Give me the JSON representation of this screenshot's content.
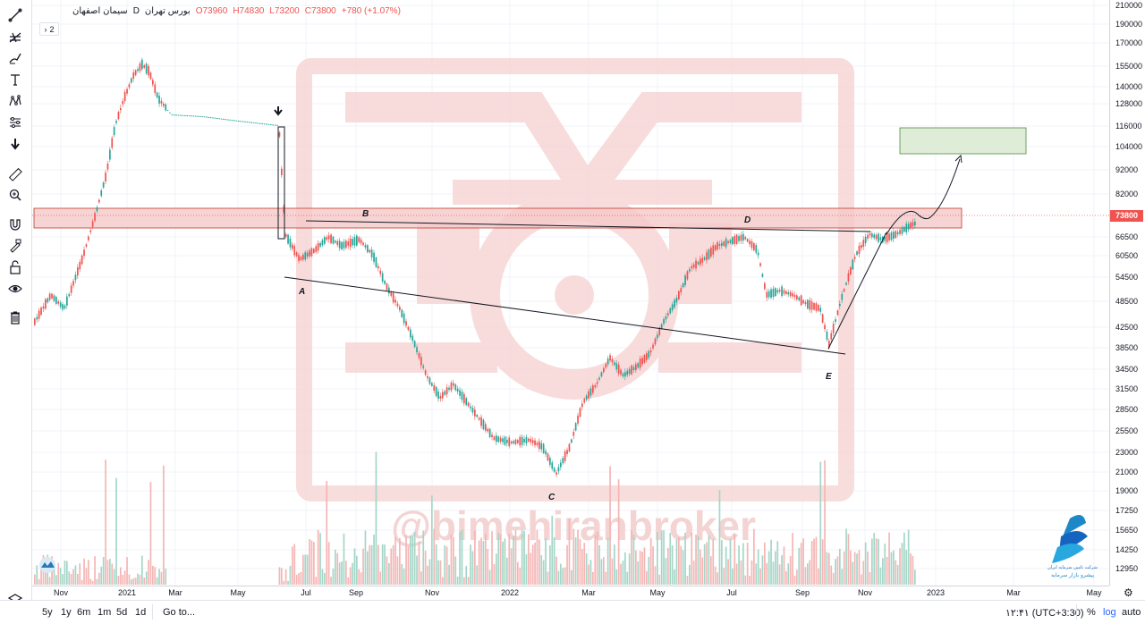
{
  "symbol": {
    "name": "سیمان اصفهان",
    "exchange": "بورس تهران",
    "interval": "D",
    "open_label": "O73960",
    "high_label": "H74830",
    "low_label": "L73200",
    "close_label": "C73800",
    "change_label": "+780 (+1.07%)",
    "collapse_label": "2"
  },
  "price_axis": {
    "ticks": [
      "210000",
      "190000",
      "170000",
      "155000",
      "140000",
      "128000",
      "116000",
      "104000",
      "92000",
      "82000",
      "66500",
      "60500",
      "54500",
      "48500",
      "42500",
      "38500",
      "34500",
      "31500",
      "28500",
      "25500",
      "23000",
      "21000",
      "19000",
      "17250",
      "15650",
      "14250",
      "12950"
    ],
    "last_price": "73800"
  },
  "time_axis": {
    "ticks": [
      "Nov",
      "2021",
      "Mar",
      "May",
      "Jul",
      "Sep",
      "Nov",
      "2022",
      "Mar",
      "May",
      "Jul",
      "Sep",
      "Nov",
      "2023",
      "Mar",
      "May"
    ]
  },
  "annotations": {
    "labels": [
      "A",
      "B",
      "C",
      "D",
      "E"
    ],
    "watermark": "@bimehiranbroker",
    "logo_text_line1": "شرکت تامین سرمایه ایران",
    "logo_text_line2": "پیشرو بازار سرمایه"
  },
  "bottom_bar": {
    "ranges": [
      "5y",
      "1y",
      "6m",
      "1m",
      "5d",
      "1d"
    ],
    "goto": "Go to...",
    "time": "۱۲:۴۱ (UTC+3:30)",
    "percent": "%",
    "log": "log",
    "auto": "auto"
  },
  "toolbar": {
    "icons": [
      "trendline-icon",
      "fork-icon",
      "brush-icon",
      "text-icon",
      "pattern-icon",
      "measure-icon",
      "arrow-down-icon",
      "ruler-icon",
      "zoom-icon",
      "magnet-icon",
      "lock-pencil-icon",
      "lock-icon",
      "eye-icon",
      "trash-icon",
      "layers-icon"
    ]
  },
  "colors": {
    "up": "#26a69a",
    "down": "#ef5350",
    "zone": "#f5c9c9",
    "target_zone": "#dfedd8"
  },
  "chart_data": {
    "type": "candlestick",
    "last_close": 73800,
    "swing_points": [
      {
        "label": "A",
        "date": "2021-07",
        "price": 56500
      },
      {
        "label": "B",
        "date": "2021-08",
        "price": 70000
      },
      {
        "label": "C",
        "date": "2022-02",
        "price": 19500
      },
      {
        "label": "D",
        "date": "2022-07",
        "price": 71000
      },
      {
        "label": "E",
        "date": "2022-10",
        "price": 38500
      }
    ]
  }
}
